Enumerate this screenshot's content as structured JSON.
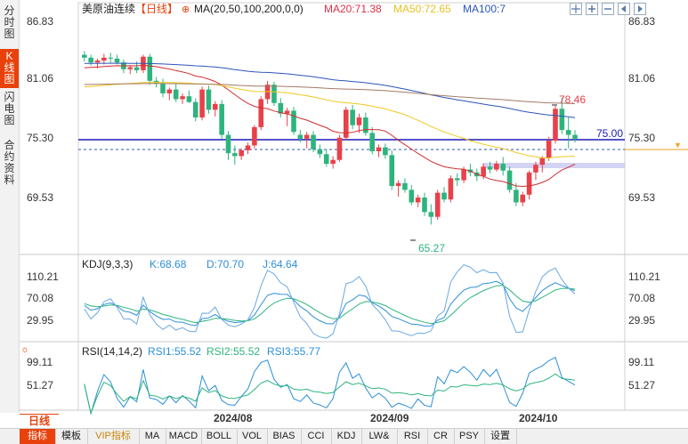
{
  "side_tabs": [
    {
      "label": [
        "分",
        "时",
        "图"
      ],
      "active": false
    },
    {
      "label": [
        "K",
        "线",
        "图"
      ],
      "active": true
    },
    {
      "label": [
        "闪",
        "电",
        "图"
      ],
      "active": false
    },
    {
      "label": [
        "合",
        "约",
        "资",
        "料"
      ],
      "active": false
    }
  ],
  "header": {
    "symbol": "美原油连续",
    "period": "【日线】",
    "ma_params": "MA(20,50,100,200,0,0)",
    "ma20": "MA20:71.38",
    "ma50": "MA50:72.65",
    "ma100": "MA100:7"
  },
  "price_axis": {
    "left": [
      "86.83",
      "81.06",
      "75.30",
      "69.53"
    ],
    "right": [
      "86.83",
      "81.06",
      "75.30",
      "69.53"
    ]
  },
  "annotations": {
    "high": "78.46",
    "low": "65.27",
    "line_level": "75.00"
  },
  "kdj": {
    "title": "KDJ(9,3,3)",
    "k": "K:68.68",
    "d": "D:70.70",
    "j": "J:64.64",
    "axis": [
      "110.21",
      "70.08",
      "29.95"
    ]
  },
  "rsi": {
    "title": "RSI(14,14,2)",
    "rsi1": "RSI1:55.52",
    "rsi2": "RSI2:55.52",
    "rsi3": "RSI3:55.77",
    "axis": [
      "99.11",
      "51.27"
    ]
  },
  "dates": [
    "2024/08",
    "2024/09",
    "2024/10"
  ],
  "period_tab": "日线",
  "bottom_tabs": [
    "指标",
    "模板",
    "VIP指标",
    "MA",
    "MACD",
    "BOLL",
    "VOL",
    "BIAS",
    "CCI",
    "KDJ",
    "LW&",
    "RSI",
    "CR",
    "PSY",
    "设置"
  ],
  "colors": {
    "up": "#e8414a",
    "down": "#2db47d",
    "ma20": "#cf2f2f",
    "ma50": "#f0c820",
    "ma100": "#2c55b8",
    "ma200": "#a37a64",
    "level": "#1a1ab8"
  },
  "chart_data": {
    "type": "candlestick",
    "price_range": [
      62.2,
      88.3
    ],
    "candles": [
      [
        82.9,
        83.3,
        82.2,
        82.6
      ],
      [
        82.6,
        82.9,
        81.8,
        82.1
      ],
      [
        82.1,
        82.5,
        81.5,
        82.3
      ],
      [
        82.3,
        83.0,
        81.9,
        82.6
      ],
      [
        82.6,
        83.1,
        82.0,
        82.5
      ],
      [
        82.5,
        82.9,
        81.9,
        82.1
      ],
      [
        82.1,
        82.4,
        81.0,
        81.4
      ],
      [
        81.4,
        81.8,
        80.9,
        81.6
      ],
      [
        81.6,
        82.2,
        81.0,
        81.3
      ],
      [
        81.3,
        82.9,
        81.0,
        82.7
      ],
      [
        82.7,
        83.0,
        79.8,
        80.2
      ],
      [
        80.2,
        80.6,
        79.5,
        79.9
      ],
      [
        79.9,
        80.4,
        78.5,
        78.9
      ],
      [
        78.9,
        79.5,
        78.2,
        79.3
      ],
      [
        79.3,
        79.9,
        78.0,
        78.3
      ],
      [
        78.3,
        78.9,
        77.8,
        78.6
      ],
      [
        78.6,
        79.2,
        77.9,
        78.0
      ],
      [
        78.0,
        78.4,
        76.0,
        76.4
      ],
      [
        76.4,
        79.6,
        76.1,
        79.3
      ],
      [
        79.3,
        79.7,
        76.8,
        77.2
      ],
      [
        77.2,
        78.1,
        76.5,
        77.8
      ],
      [
        77.8,
        78.2,
        74.2,
        74.6
      ],
      [
        74.6,
        75.0,
        72.0,
        72.7
      ],
      [
        72.7,
        73.5,
        71.5,
        72.4
      ],
      [
        72.4,
        73.2,
        72.0,
        73.0
      ],
      [
        73.0,
        73.8,
        72.6,
        73.5
      ],
      [
        73.5,
        75.6,
        73.2,
        75.4
      ],
      [
        75.4,
        78.6,
        75.1,
        78.3
      ],
      [
        78.3,
        80.2,
        77.8,
        79.8
      ],
      [
        79.8,
        80.1,
        77.6,
        77.9
      ],
      [
        77.9,
        78.4,
        76.4,
        76.8
      ],
      [
        76.8,
        77.4,
        75.5,
        77.1
      ],
      [
        77.1,
        77.5,
        74.6,
        74.9
      ],
      [
        74.6,
        75.1,
        73.8,
        74.2
      ],
      [
        74.2,
        74.9,
        73.2,
        74.6
      ],
      [
        74.6,
        75.0,
        72.8,
        73.1
      ],
      [
        73.1,
        73.6,
        72.2,
        72.6
      ],
      [
        72.6,
        73.1,
        71.3,
        71.6
      ],
      [
        71.6,
        72.4,
        71.1,
        72.0
      ],
      [
        72.0,
        74.6,
        71.8,
        74.3
      ],
      [
        74.3,
        77.5,
        74.0,
        77.2
      ],
      [
        77.2,
        77.7,
        75.2,
        75.6
      ],
      [
        75.6,
        76.8,
        74.8,
        76.4
      ],
      [
        76.4,
        76.9,
        74.5,
        74.8
      ],
      [
        74.8,
        75.4,
        72.6,
        72.9
      ],
      [
        72.9,
        73.6,
        72.3,
        73.3
      ],
      [
        73.3,
        73.7,
        72.1,
        72.5
      ],
      [
        72.5,
        73.0,
        68.9,
        69.3
      ],
      [
        69.3,
        69.9,
        68.2,
        69.6
      ],
      [
        69.6,
        70.1,
        68.6,
        68.9
      ],
      [
        68.9,
        69.4,
        67.3,
        67.6
      ],
      [
        67.6,
        68.4,
        67.1,
        68.1
      ],
      [
        68.1,
        68.6,
        66.2,
        66.6
      ],
      [
        66.6,
        67.4,
        65.3,
        66.1
      ],
      [
        66.1,
        68.9,
        65.8,
        68.6
      ],
      [
        68.6,
        69.2,
        67.6,
        67.9
      ],
      [
        67.9,
        70.4,
        67.6,
        70.1
      ],
      [
        70.1,
        70.6,
        69.3,
        69.9
      ],
      [
        69.9,
        71.3,
        69.6,
        71.0
      ],
      [
        71.0,
        71.6,
        70.3,
        70.7
      ],
      [
        70.7,
        71.1,
        69.8,
        70.3
      ],
      [
        70.3,
        71.6,
        70.0,
        71.3
      ],
      [
        71.3,
        71.8,
        70.6,
        71.0
      ],
      [
        71.0,
        71.9,
        70.8,
        71.6
      ],
      [
        71.6,
        72.3,
        70.4,
        70.9
      ],
      [
        70.9,
        71.3,
        68.6,
        68.9
      ],
      [
        68.9,
        69.6,
        67.2,
        67.6
      ],
      [
        67.6,
        68.7,
        67.2,
        68.4
      ],
      [
        68.4,
        70.9,
        67.9,
        70.7
      ],
      [
        70.7,
        71.8,
        69.9,
        71.5
      ],
      [
        71.5,
        72.4,
        70.7,
        72.2
      ],
      [
        72.2,
        74.4,
        71.9,
        74.0
      ],
      [
        74.0,
        77.6,
        73.7,
        77.3
      ],
      [
        77.3,
        78.46,
        74.7,
        75.1
      ],
      [
        75.1,
        76.4,
        73.2,
        74.6
      ],
      [
        74.6,
        75.1,
        73.8,
        74.2
      ]
    ]
  }
}
